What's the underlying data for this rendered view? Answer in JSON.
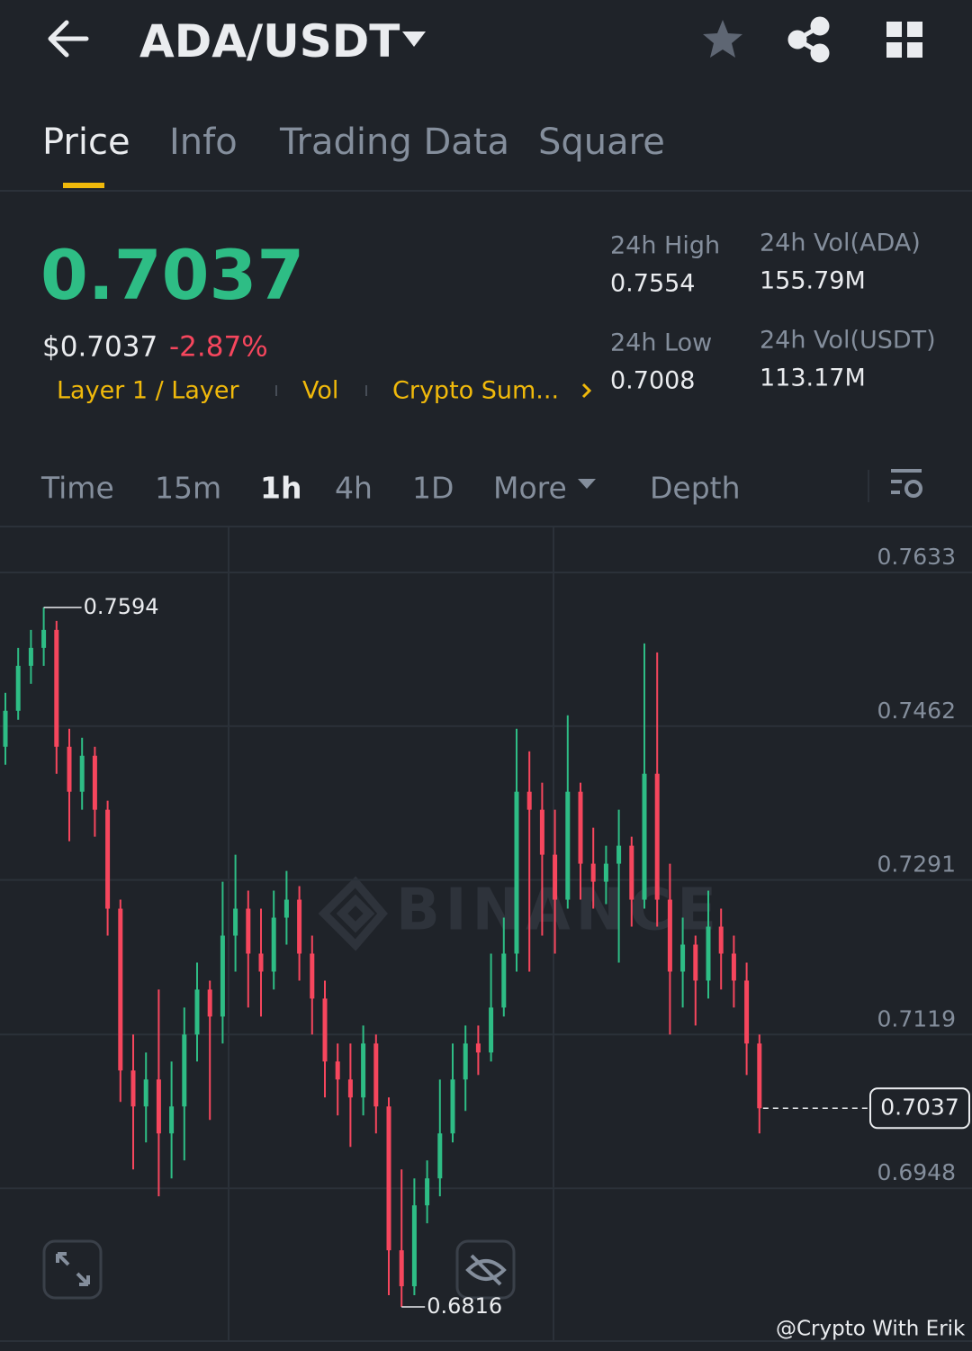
{
  "header": {
    "title": "ADA/USDT"
  },
  "tabs": [
    "Price",
    "Info",
    "Trading Data",
    "Square"
  ],
  "ticker": {
    "price": "0.7037",
    "usd_price": "$0.7037",
    "change": "-2.87%",
    "tags": [
      "Layer 1 / Layer",
      "Vol",
      "Crypto Sum..."
    ],
    "stats": [
      {
        "label": "24h High",
        "value": "0.7554"
      },
      {
        "label": "24h Low",
        "value": "0.7008"
      },
      {
        "label": "24h Vol(ADA)",
        "value": "155.79M"
      },
      {
        "label": "24h Vol(USDT)",
        "value": "113.17M"
      }
    ]
  },
  "intervals": [
    "Time",
    "15m",
    "1h",
    "4h",
    "1D",
    "More",
    "Depth"
  ],
  "watermark": "BINANCE",
  "footer": "@Crypto With Erik",
  "chart_data": {
    "type": "candlestick",
    "open": [
      0.7439,
      0.7479,
      0.7529,
      0.7549,
      0.7569,
      0.7439,
      0.7389,
      0.7429,
      0.7369,
      0.7259,
      0.7079,
      0.7039,
      0.7069,
      0.7009,
      0.7039,
      0.7119,
      0.7169,
      0.7139,
      0.7229,
      0.7259,
      0.7209,
      0.7189,
      0.7249,
      0.7269,
      0.7209,
      0.7159,
      0.7089,
      0.7069,
      0.7049,
      0.7109,
      0.7039,
      0.6879,
      0.6839,
      0.6929,
      0.6959,
      0.7009,
      0.7069,
      0.7109,
      0.7099,
      0.7149,
      0.7209,
      0.7389,
      0.7369,
      0.7319,
      0.7269,
      0.7389,
      0.7309,
      0.7289,
      0.7309,
      0.7329,
      0.7269,
      0.7409,
      0.7269,
      0.7189,
      0.7219,
      0.7179,
      0.7239,
      0.7209,
      0.7179,
      0.7109
    ],
    "high": [
      0.7499,
      0.7549,
      0.7569,
      0.7594,
      0.7579,
      0.7459,
      0.7449,
      0.7439,
      0.7379,
      0.7269,
      0.7119,
      0.7099,
      0.7169,
      0.7089,
      0.7149,
      0.7199,
      0.7179,
      0.7289,
      0.7319,
      0.7279,
      0.7259,
      0.7279,
      0.7301,
      0.7284,
      0.7229,
      0.7179,
      0.7109,
      0.7109,
      0.7129,
      0.7119,
      0.7049,
      0.6969,
      0.6959,
      0.6979,
      0.7069,
      0.7109,
      0.7129,
      0.7129,
      0.7209,
      0.7249,
      0.7459,
      0.7434,
      0.7399,
      0.7369,
      0.7474,
      0.7399,
      0.7349,
      0.7329,
      0.7369,
      0.7339,
      0.7554,
      0.7544,
      0.7309,
      0.7249,
      0.7229,
      0.7279,
      0.7259,
      0.7229,
      0.7199,
      0.7119
    ],
    "low": [
      0.7419,
      0.7469,
      0.7509,
      0.7529,
      0.7409,
      0.7334,
      0.7369,
      0.7339,
      0.7229,
      0.7044,
      0.6969,
      0.6999,
      0.6939,
      0.6959,
      0.6979,
      0.7089,
      0.7024,
      0.7109,
      0.7189,
      0.7149,
      0.7139,
      0.7169,
      0.7219,
      0.7179,
      0.7119,
      0.7049,
      0.7029,
      0.6994,
      0.7029,
      0.7009,
      0.6829,
      0.6816,
      0.6829,
      0.6909,
      0.6939,
      0.6999,
      0.7034,
      0.7074,
      0.7089,
      0.7139,
      0.7189,
      0.7189,
      0.7229,
      0.7209,
      0.7259,
      0.7269,
      0.7259,
      0.7264,
      0.7199,
      0.7239,
      0.7259,
      0.7239,
      0.7119,
      0.7149,
      0.7129,
      0.7159,
      0.7169,
      0.7149,
      0.7074,
      0.7009
    ],
    "close": [
      0.7479,
      0.7529,
      0.7549,
      0.7569,
      0.7439,
      0.7389,
      0.7429,
      0.7369,
      0.7259,
      0.7079,
      0.7039,
      0.7069,
      0.7009,
      0.7039,
      0.7119,
      0.7169,
      0.7139,
      0.7229,
      0.7259,
      0.7209,
      0.7189,
      0.7249,
      0.7269,
      0.7209,
      0.7159,
      0.7089,
      0.7069,
      0.7049,
      0.7109,
      0.7039,
      0.6879,
      0.6839,
      0.6929,
      0.6959,
      0.7009,
      0.7069,
      0.7109,
      0.7099,
      0.7149,
      0.7209,
      0.7389,
      0.7369,
      0.7319,
      0.7269,
      0.7389,
      0.7309,
      0.7289,
      0.7309,
      0.7329,
      0.7269,
      0.7409,
      0.7269,
      0.7189,
      0.7219,
      0.7179,
      0.7239,
      0.7209,
      0.7179,
      0.7109,
      0.7037
    ],
    "ylim": [
      0.6778,
      0.7684
    ],
    "yticks": [
      0.7633,
      0.7462,
      0.7291,
      0.7119,
      0.6948
    ],
    "grid": true,
    "up_color": "#2ebd85",
    "down_color": "#f6465d",
    "max_label": 0.7594,
    "min_label": 0.6816,
    "last_price": 0.7037
  }
}
